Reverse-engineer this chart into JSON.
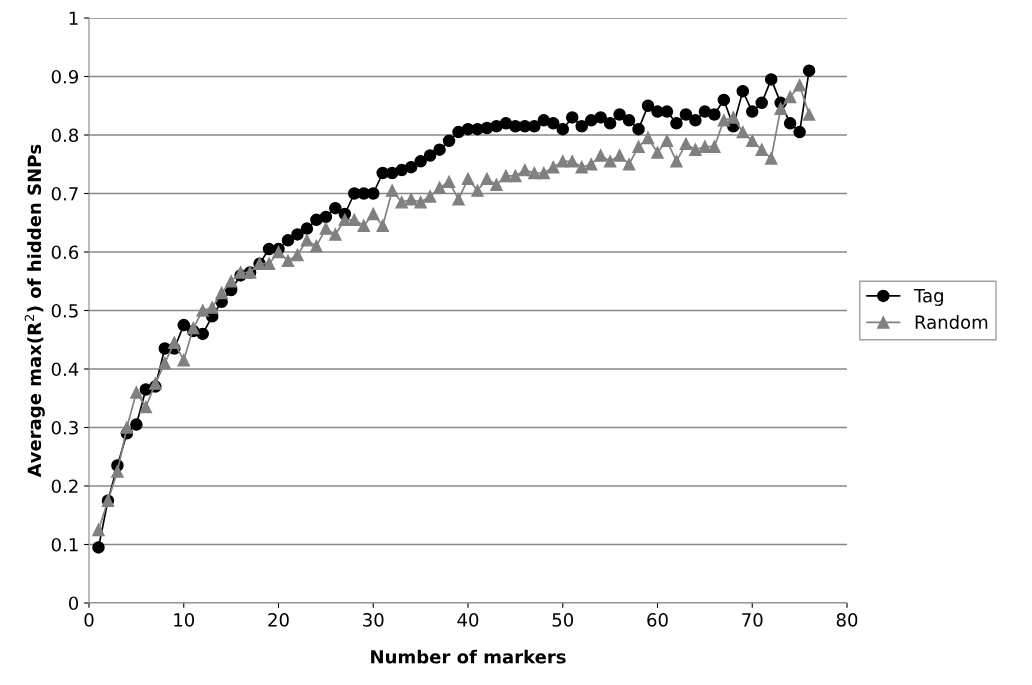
{
  "chart_data": {
    "type": "line",
    "xlabel": "Number of markers",
    "ylabel": "Average max(R$^{2}$) of hidden SNPs",
    "x": [
      1,
      2,
      3,
      4,
      5,
      6,
      7,
      8,
      9,
      10,
      11,
      12,
      13,
      14,
      15,
      16,
      17,
      18,
      19,
      20,
      21,
      22,
      23,
      24,
      25,
      26,
      27,
      28,
      29,
      30,
      31,
      32,
      33,
      34,
      35,
      36,
      37,
      38,
      39,
      40,
      41,
      42,
      43,
      44,
      45,
      46,
      47,
      48,
      49,
      50,
      51,
      52,
      53,
      54,
      55,
      56,
      57,
      58,
      59,
      60,
      61,
      62,
      63,
      64,
      65,
      66,
      67,
      68,
      69,
      70,
      71,
      72,
      73,
      74,
      75,
      76
    ],
    "series": [
      {
        "name": "Tag",
        "color": "#000000",
        "marker": "circle",
        "values": [
          0.095,
          0.175,
          0.235,
          0.29,
          0.305,
          0.365,
          0.37,
          0.435,
          0.435,
          0.475,
          0.465,
          0.46,
          0.49,
          0.515,
          0.535,
          0.56,
          0.565,
          0.58,
          0.605,
          0.605,
          0.62,
          0.63,
          0.64,
          0.655,
          0.66,
          0.675,
          0.665,
          0.7,
          0.7,
          0.7,
          0.735,
          0.735,
          0.74,
          0.745,
          0.755,
          0.765,
          0.775,
          0.79,
          0.805,
          0.81,
          0.81,
          0.812,
          0.815,
          0.82,
          0.815,
          0.815,
          0.815,
          0.825,
          0.82,
          0.81,
          0.83,
          0.815,
          0.825,
          0.83,
          0.82,
          0.835,
          0.825,
          0.81,
          0.85,
          0.84,
          0.84,
          0.82,
          0.835,
          0.825,
          0.84,
          0.835,
          0.86,
          0.815,
          0.875,
          0.84,
          0.855,
          0.895,
          0.855,
          0.82,
          0.805,
          0.91
        ]
      },
      {
        "name": "Random",
        "color": "#808080",
        "marker": "triangle",
        "values": [
          0.125,
          0.175,
          0.225,
          0.3,
          0.36,
          0.335,
          0.375,
          0.41,
          0.445,
          0.415,
          0.47,
          0.5,
          0.505,
          0.53,
          0.55,
          0.565,
          0.565,
          0.58,
          0.58,
          0.6,
          0.585,
          0.595,
          0.62,
          0.61,
          0.64,
          0.63,
          0.655,
          0.655,
          0.645,
          0.665,
          0.645,
          0.705,
          0.685,
          0.69,
          0.685,
          0.695,
          0.71,
          0.72,
          0.69,
          0.725,
          0.705,
          0.725,
          0.715,
          0.73,
          0.73,
          0.74,
          0.735,
          0.735,
          0.745,
          0.755,
          0.755,
          0.745,
          0.75,
          0.765,
          0.755,
          0.765,
          0.75,
          0.78,
          0.795,
          0.77,
          0.79,
          0.755,
          0.785,
          0.775,
          0.78,
          0.78,
          0.825,
          0.83,
          0.805,
          0.79,
          0.775,
          0.76,
          0.845,
          0.865,
          0.885,
          0.835
        ]
      }
    ],
    "xlim": [
      0,
      80
    ],
    "xticks": [
      0,
      10,
      20,
      30,
      40,
      50,
      60,
      70,
      80
    ],
    "ylim": [
      0,
      1
    ],
    "yticks": [
      0,
      0.1,
      0.2,
      0.3,
      0.4,
      0.5,
      0.6,
      0.7,
      0.8,
      0.9,
      1
    ],
    "grid": "y",
    "legend": "right",
    "line_style": "solid"
  }
}
